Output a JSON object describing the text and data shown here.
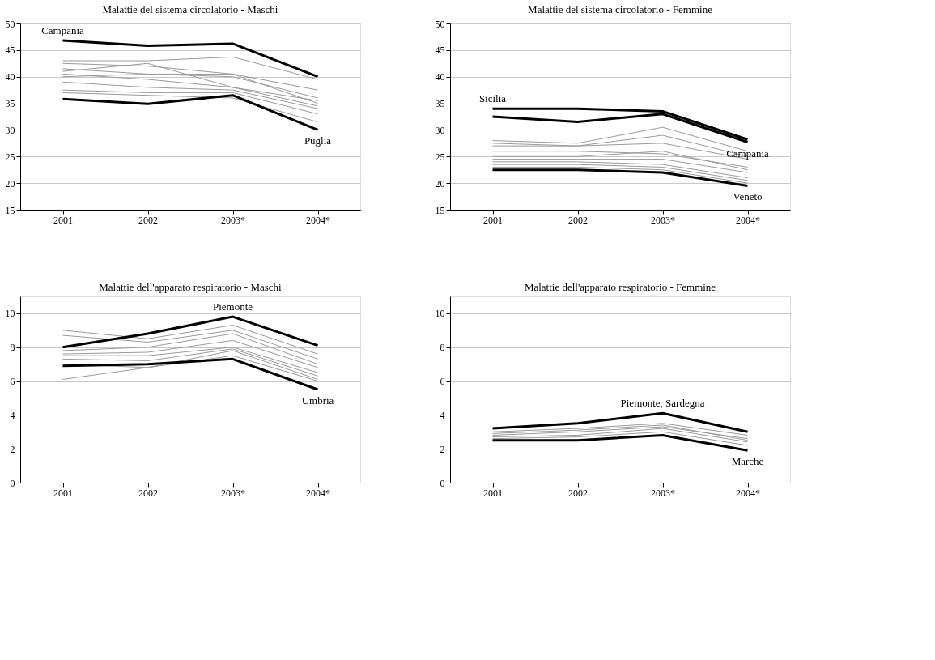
{
  "chart_data": [
    {
      "type": "line",
      "title": "Malattie del sistema circolatorio - Maschi",
      "categories": [
        "2001",
        "2002",
        "2003*",
        "2004*"
      ],
      "ylim": [
        15,
        50
      ],
      "yticks": [
        15,
        20,
        25,
        30,
        35,
        40,
        45,
        50
      ],
      "grid": "y",
      "series": [
        {
          "color": "#9a9a9a",
          "values": [
            43,
            43,
            43.7,
            39.5
          ]
        },
        {
          "color": "#9a9a9a",
          "values": [
            42.5,
            42,
            40.5,
            37.5
          ]
        },
        {
          "color": "#9a9a9a",
          "values": [
            41,
            42.5,
            38,
            34.5
          ]
        },
        {
          "color": "#9a9a9a",
          "values": [
            41.5,
            40.5,
            40,
            36
          ]
        },
        {
          "color": "#9a9a9a",
          "values": [
            40.5,
            39.5,
            38,
            35.5
          ]
        },
        {
          "color": "#9a9a9a",
          "values": [
            40,
            40.5,
            40.5,
            35
          ]
        },
        {
          "color": "#9a9a9a",
          "values": [
            39,
            38,
            37.5,
            34
          ]
        },
        {
          "color": "#9a9a9a",
          "values": [
            37.5,
            37,
            37,
            33
          ]
        },
        {
          "color": "#9a9a9a",
          "values": [
            37,
            36.5,
            36,
            31.5
          ]
        },
        {
          "name": "Campania",
          "color": "#000000",
          "values": [
            46.8,
            45.8,
            46.2,
            40
          ]
        },
        {
          "name": "Puglia",
          "color": "#000000",
          "values": [
            35.8,
            34.9,
            36.5,
            30
          ]
        }
      ]
    },
    {
      "type": "line",
      "title": "Malattie del sistema circolatorio - Femmine",
      "categories": [
        "2001",
        "2002",
        "2003*",
        "2004*"
      ],
      "ylim": [
        15,
        50
      ],
      "yticks": [
        15,
        20,
        25,
        30,
        35,
        40,
        45,
        50
      ],
      "grid": "y",
      "series": [
        {
          "color": "#9a9a9a",
          "values": [
            28,
            27.5,
            30.5,
            26
          ]
        },
        {
          "color": "#9a9a9a",
          "values": [
            27.5,
            27,
            29,
            25
          ]
        },
        {
          "color": "#9a9a9a",
          "values": [
            27,
            27,
            27.5,
            24.5
          ]
        },
        {
          "color": "#9a9a9a",
          "values": [
            26,
            26,
            25.5,
            23
          ]
        },
        {
          "color": "#9a9a9a",
          "values": [
            25,
            25,
            26,
            22.5
          ]
        },
        {
          "color": "#9a9a9a",
          "values": [
            24.5,
            24.5,
            24.5,
            22
          ]
        },
        {
          "color": "#9a9a9a",
          "values": [
            24,
            24,
            23.5,
            21
          ]
        },
        {
          "color": "#9a9a9a",
          "values": [
            23.5,
            23.5,
            23,
            20.5
          ]
        },
        {
          "color": "#9a9a9a",
          "values": [
            23,
            23,
            22.5,
            20
          ]
        },
        {
          "name": "Sicilia",
          "color": "#000000",
          "values": [
            34,
            34,
            33.5,
            28.2
          ]
        },
        {
          "name": "Campania",
          "color": "#000000",
          "values": [
            32.5,
            31.5,
            33,
            27.7
          ]
        },
        {
          "name": "Veneto",
          "color": "#000000",
          "values": [
            22.5,
            22.5,
            22,
            19.5
          ]
        }
      ]
    },
    {
      "type": "line",
      "title": "Malattie dell'apparato respiratorio - Maschi",
      "categories": [
        "2001",
        "2002",
        "2003*",
        "2004*"
      ],
      "ylim": [
        0,
        11
      ],
      "yticks": [
        0,
        2,
        4,
        6,
        8,
        10
      ],
      "grid": "y",
      "series": [
        {
          "color": "#9a9a9a",
          "values": [
            9,
            8.5,
            9.3,
            7.6
          ]
        },
        {
          "color": "#9a9a9a",
          "values": [
            8.7,
            8.3,
            9,
            7.3
          ]
        },
        {
          "color": "#9a9a9a",
          "values": [
            7.8,
            8,
            8.8,
            7
          ]
        },
        {
          "color": "#9a9a9a",
          "values": [
            7.6,
            7.7,
            8.4,
            6.8
          ]
        },
        {
          "color": "#9a9a9a",
          "values": [
            7.5,
            7.5,
            8,
            6.5
          ]
        },
        {
          "color": "#9a9a9a",
          "values": [
            7.3,
            7.2,
            7.9,
            6.3
          ]
        },
        {
          "color": "#9a9a9a",
          "values": [
            7,
            6.8,
            7.8,
            6.1
          ]
        },
        {
          "color": "#9a9a9a",
          "values": [
            6.1,
            6.8,
            7.5,
            6
          ]
        },
        {
          "name": "Piemonte",
          "color": "#000000",
          "values": [
            8,
            8.8,
            9.8,
            8.1
          ]
        },
        {
          "name": "Umbria",
          "color": "#000000",
          "values": [
            6.9,
            7,
            7.3,
            5.5
          ]
        }
      ]
    },
    {
      "type": "line",
      "title": "Malattie dell'apparato respiratorio - Femmine",
      "categories": [
        "2001",
        "2002",
        "2003*",
        "2004*"
      ],
      "ylim": [
        0,
        11
      ],
      "yticks": [
        0,
        2,
        4,
        6,
        8,
        10
      ],
      "grid": "y",
      "series": [
        {
          "color": "#9a9a9a",
          "values": [
            3,
            3.2,
            3.5,
            2.8
          ]
        },
        {
          "color": "#9a9a9a",
          "values": [
            2.9,
            3.1,
            3.4,
            2.5
          ]
        },
        {
          "color": "#9a9a9a",
          "values": [
            2.8,
            3,
            3.3,
            2.6
          ]
        },
        {
          "color": "#9a9a9a",
          "values": [
            2.7,
            2.8,
            3.2,
            2.4
          ]
        },
        {
          "color": "#9a9a9a",
          "values": [
            2.6,
            2.7,
            3,
            2.2
          ]
        },
        {
          "name": "Piemonte, Sardegna",
          "color": "#000000",
          "values": [
            3.2,
            3.5,
            4.1,
            3
          ]
        },
        {
          "name": "Marche",
          "color": "#000000",
          "values": [
            2.5,
            2.5,
            2.8,
            1.9
          ]
        }
      ]
    }
  ]
}
